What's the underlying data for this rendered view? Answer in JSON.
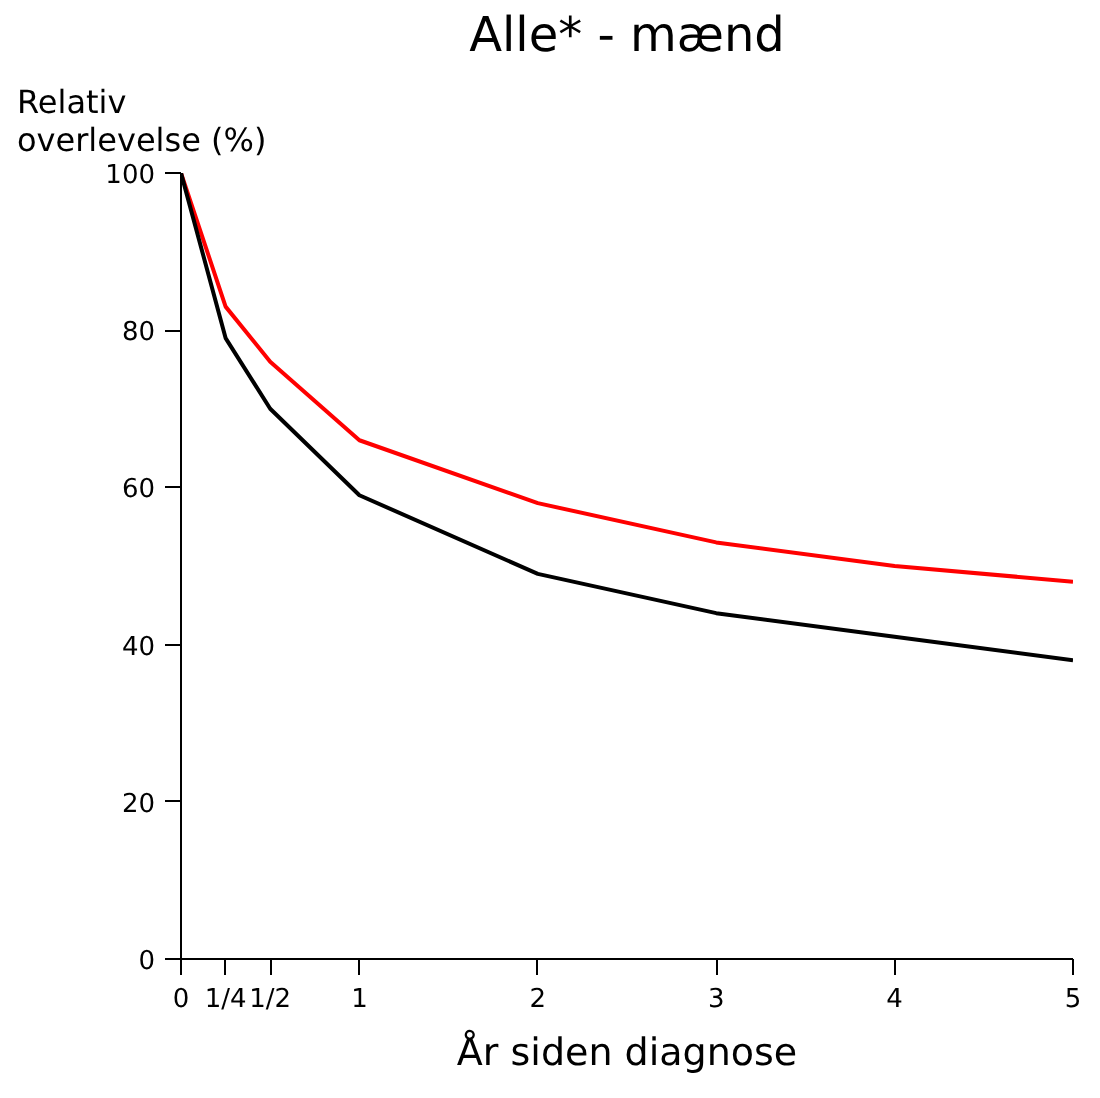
{
  "chart_data": {
    "type": "line",
    "title": "Alle* - mænd",
    "xlabel": "År siden diagnose",
    "ylabel": "Relativ overlevelse (%)",
    "xlim": [
      0,
      5
    ],
    "ylim": [
      0,
      100
    ],
    "xticks": [
      0,
      {
        "value": 0.25,
        "label": "1/4"
      },
      {
        "value": 0.5,
        "label": "1/2"
      },
      1,
      2,
      3,
      4,
      5
    ],
    "yticks": [
      0,
      20,
      40,
      60,
      80,
      100
    ],
    "x": [
      0,
      0.25,
      0.5,
      1,
      2,
      3,
      4,
      5
    ],
    "series": [
      {
        "color": "#ff0000",
        "values": [
          100,
          83,
          76,
          66,
          58,
          53,
          50,
          48
        ]
      },
      {
        "color": "#000000",
        "values": [
          100,
          79,
          70,
          59,
          49,
          44,
          41,
          38
        ]
      }
    ],
    "grid": false
  }
}
